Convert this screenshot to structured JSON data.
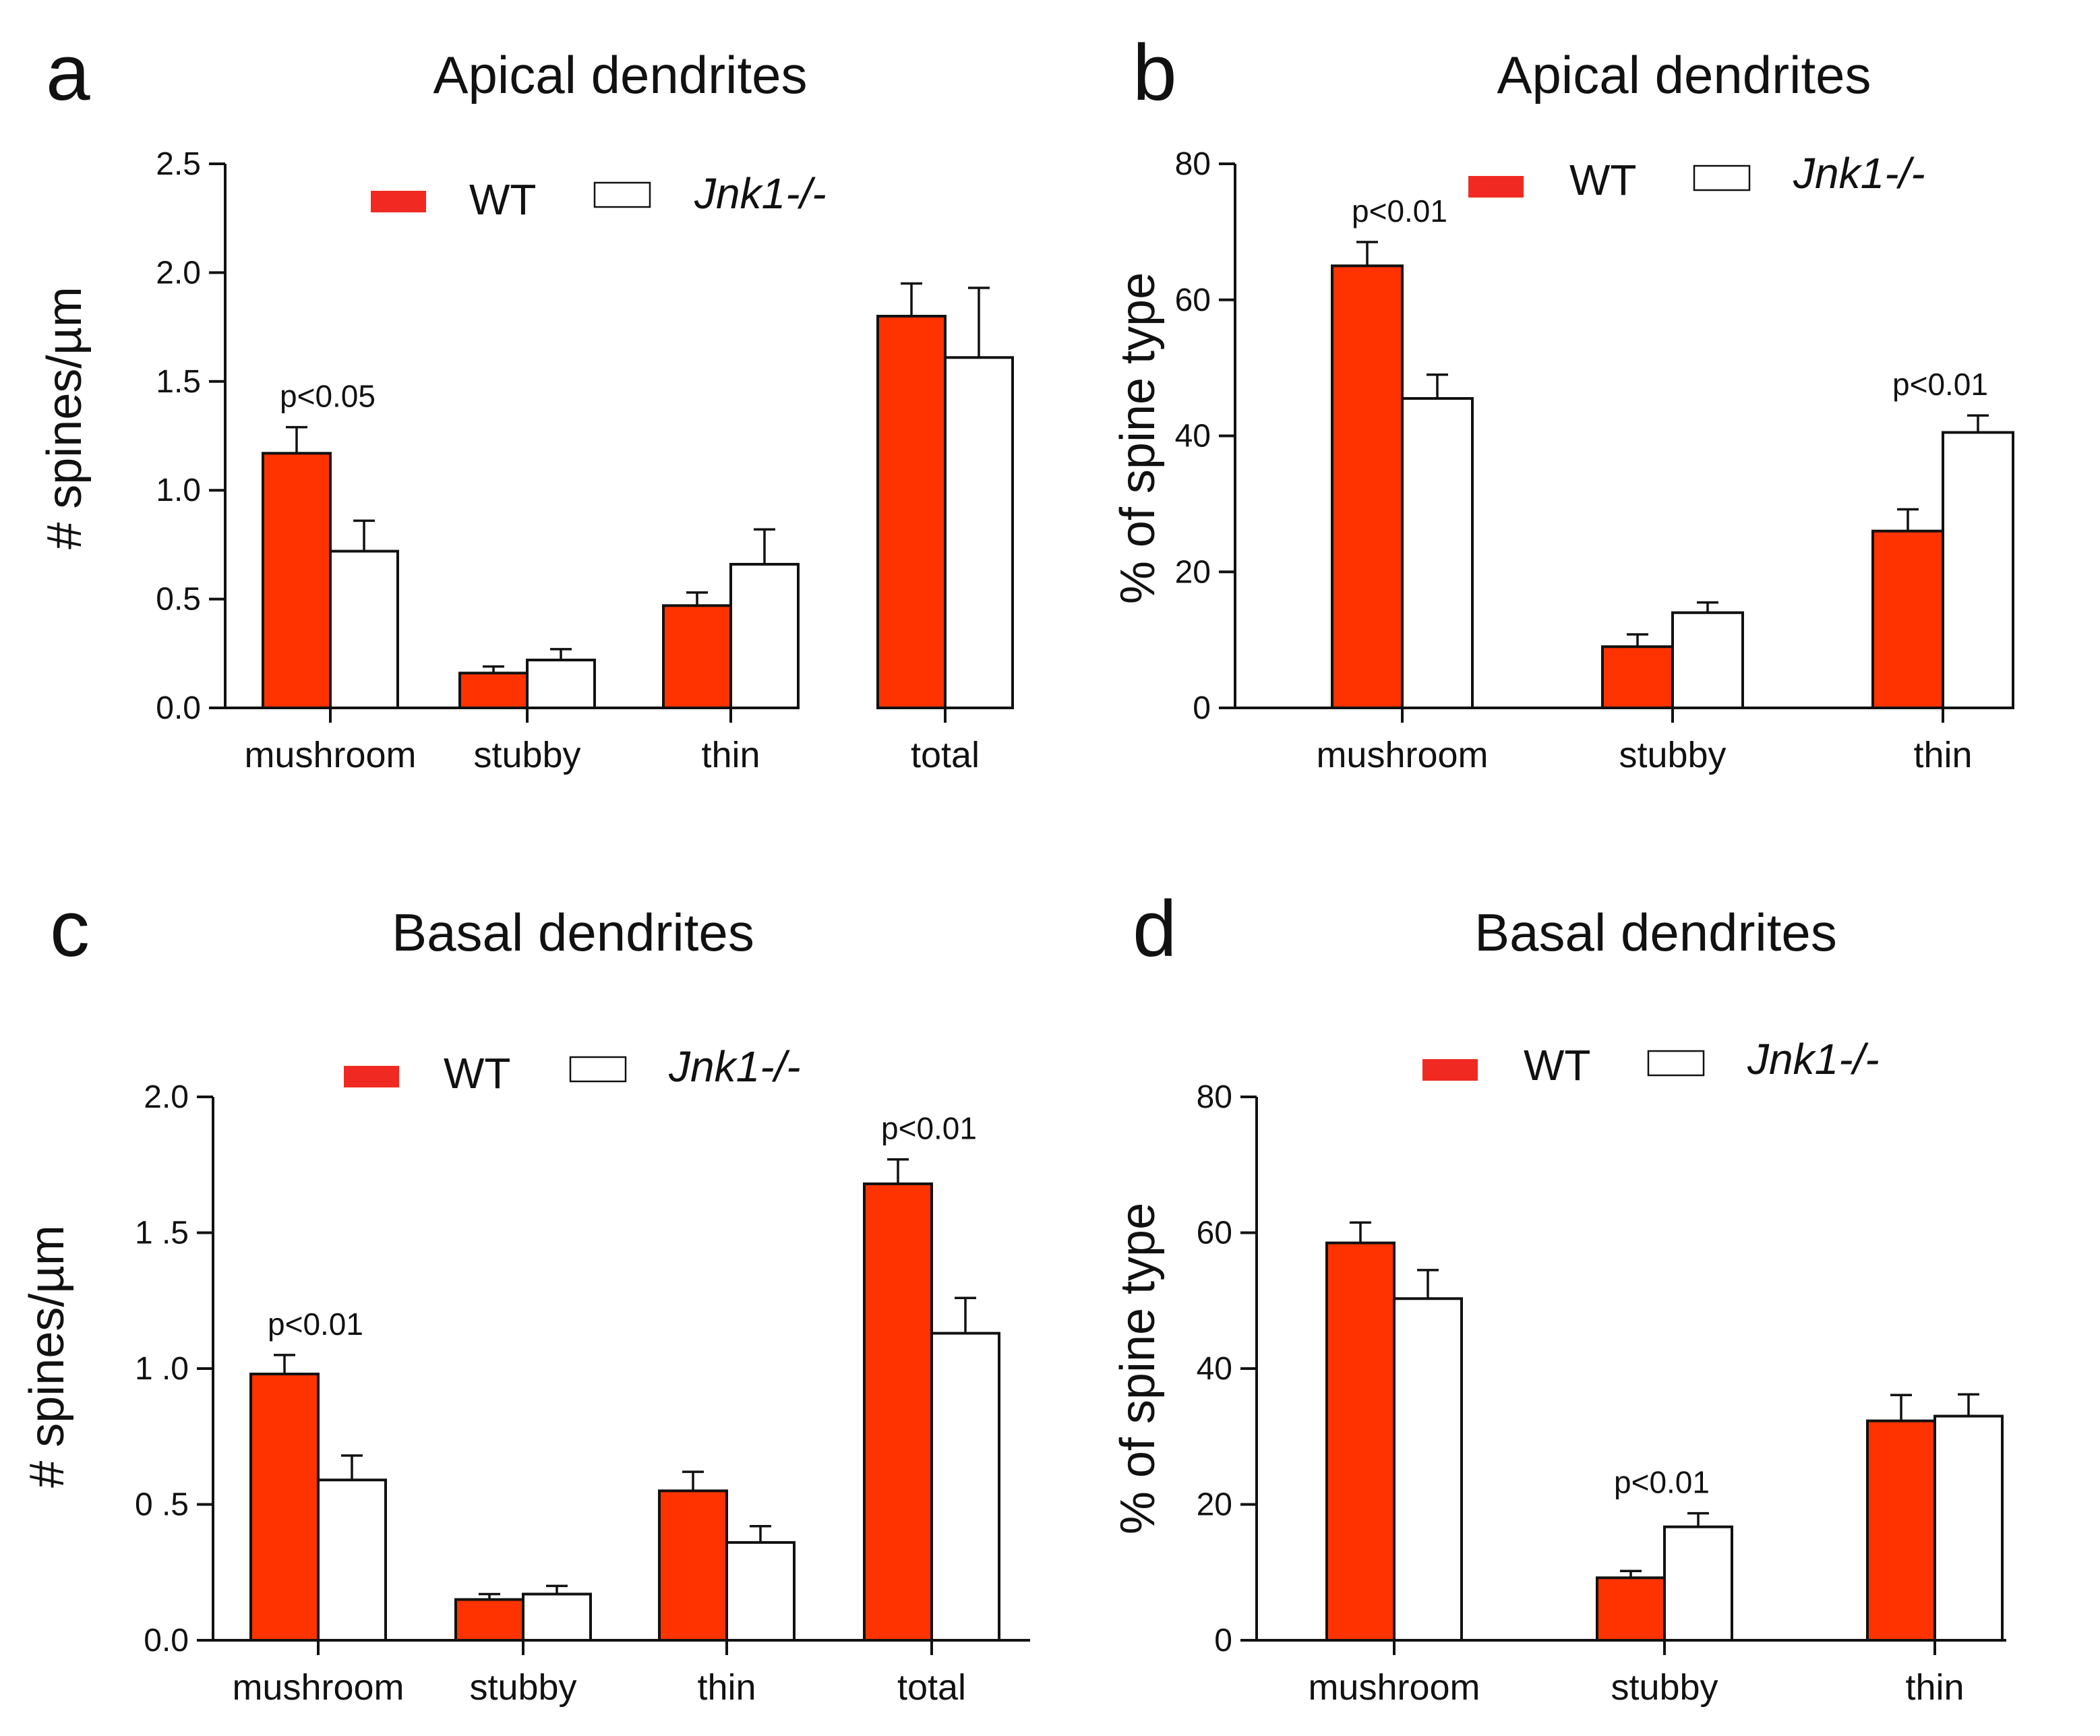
{
  "legend": {
    "wt": "WT",
    "ko": "Jnk1-/-"
  },
  "colors": {
    "wt": "#ff3300",
    "ko": "#ffffff",
    "legend_wt": "#f02a22",
    "axis": "#111111"
  },
  "chart_data": [
    {
      "panel": "a",
      "type": "bar",
      "title": "Apical dendrites",
      "ylabel": "# spines/µm",
      "ylim": [
        0,
        2.5
      ],
      "yticks": [
        "0.0",
        "0.5",
        "1.0",
        "1.5",
        "2.0",
        "2.5"
      ],
      "categories": [
        "mushroom",
        "stubby",
        "thin",
        "total"
      ],
      "series": [
        {
          "name": "WT",
          "values": [
            1.17,
            0.16,
            0.47,
            1.8
          ],
          "errors": [
            0.12,
            0.03,
            0.06,
            0.15
          ]
        },
        {
          "name": "Jnk1-/-",
          "values": [
            0.72,
            0.22,
            0.66,
            1.61
          ],
          "errors": [
            0.14,
            0.05,
            0.16,
            0.32
          ]
        }
      ],
      "annotations": [
        {
          "text": "p<0.05",
          "category": 0
        }
      ]
    },
    {
      "panel": "b",
      "type": "bar",
      "title": "Apical dendrites",
      "ylabel": "% of spine type",
      "ylim": [
        0,
        80
      ],
      "yticks": [
        "0",
        "20",
        "40",
        "60",
        "80"
      ],
      "categories": [
        "mushroom",
        "stubby",
        "thin"
      ],
      "series": [
        {
          "name": "WT",
          "values": [
            65,
            9,
            26
          ],
          "errors": [
            3.5,
            1.8,
            3.2
          ]
        },
        {
          "name": "Jnk1-/-",
          "values": [
            45.5,
            14,
            40.5
          ],
          "errors": [
            3.5,
            1.5,
            2.5
          ]
        }
      ],
      "annotations": [
        {
          "text": "p<0.01",
          "category": 0
        },
        {
          "text": "p<0.01",
          "category": 2
        }
      ]
    },
    {
      "panel": "c",
      "type": "bar",
      "title": "Basal dendrites",
      "ylabel": "# spines/µm",
      "ylim": [
        0,
        2.0
      ],
      "yticks": [
        "0.0",
        "0 .5",
        "1 .0",
        "1 .5",
        "2.0"
      ],
      "categories": [
        "mushroom",
        "stubby",
        "thin",
        "total"
      ],
      "series": [
        {
          "name": "WT",
          "values": [
            0.98,
            0.15,
            0.55,
            1.68
          ],
          "errors": [
            0.07,
            0.02,
            0.07,
            0.09
          ]
        },
        {
          "name": "Jnk1-/-",
          "values": [
            0.59,
            0.17,
            0.36,
            1.13
          ],
          "errors": [
            0.09,
            0.03,
            0.06,
            0.13
          ]
        }
      ],
      "annotations": [
        {
          "text": "p<0.01",
          "category": 0
        },
        {
          "text": "p<0.01",
          "category": 3
        }
      ]
    },
    {
      "panel": "d",
      "type": "bar",
      "title": "Basal dendrites",
      "ylabel": "% of spine type",
      "ylim": [
        0,
        80
      ],
      "yticks": [
        "0",
        "20",
        "40",
        "60",
        "80"
      ],
      "categories": [
        "mushroom",
        "stubby",
        "thin"
      ],
      "series": [
        {
          "name": "WT",
          "values": [
            58.5,
            9.2,
            32.3
          ],
          "errors": [
            3,
            1,
            3.8
          ]
        },
        {
          "name": "Jnk1-/-",
          "values": [
            50.3,
            16.7,
            33
          ],
          "errors": [
            4.2,
            2,
            3.2
          ]
        }
      ],
      "annotations": [
        {
          "text": "p<0.01",
          "category": 1
        }
      ]
    }
  ]
}
